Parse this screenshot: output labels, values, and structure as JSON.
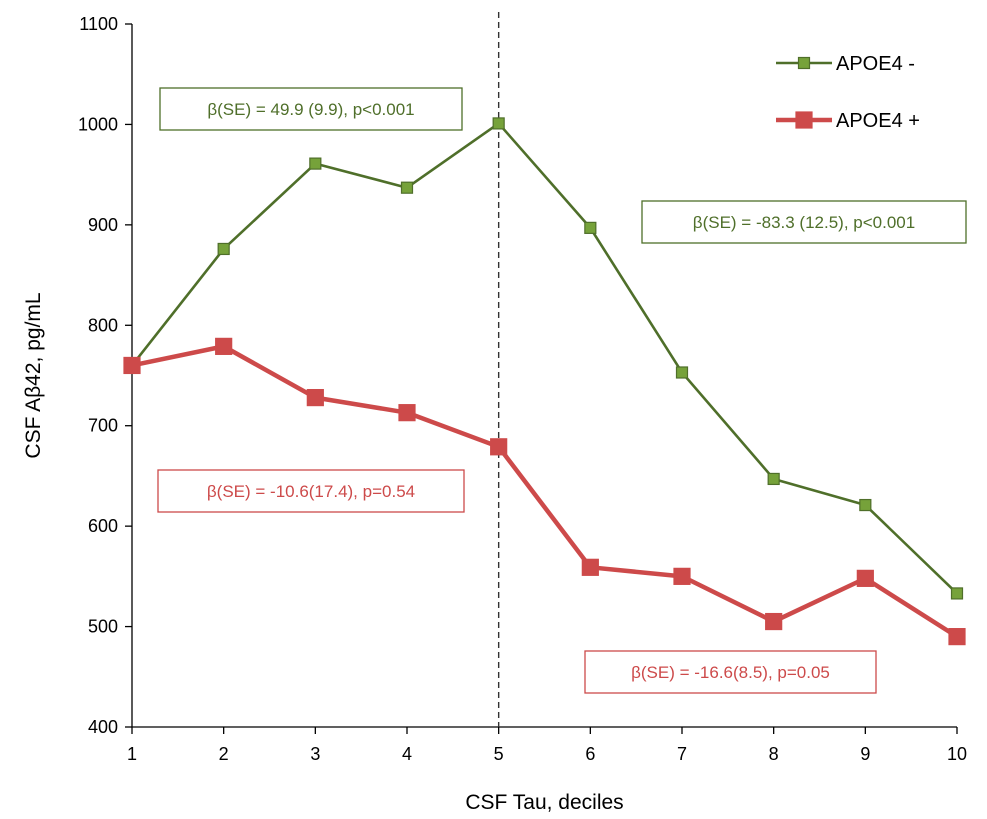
{
  "chart_data": {
    "type": "line",
    "xlabel": "CSF Tau, deciles",
    "ylabel": "CSF Aβ42, pg/mL",
    "x": [
      1,
      2,
      3,
      4,
      5,
      6,
      7,
      8,
      9,
      10
    ],
    "xlim": [
      1,
      10
    ],
    "ylim": [
      400,
      1100
    ],
    "y_ticks": [
      400,
      500,
      600,
      700,
      800,
      900,
      1000,
      1100
    ],
    "grid": false,
    "legend_position": "top-right",
    "reference_line": {
      "x": 5,
      "style": "dashed"
    },
    "series": [
      {
        "name": "APOE4 -",
        "color": "#4f6f2a",
        "marker_color": "#76a23a",
        "marker": "square",
        "values": [
          760,
          876,
          961,
          937,
          1001,
          897,
          753,
          647,
          621,
          533
        ]
      },
      {
        "name": "APOE4 +",
        "color": "#cd4a4a",
        "marker_color": "#cd4a4a",
        "marker": "square",
        "values": [
          760,
          779,
          728,
          713,
          679,
          559,
          550,
          505,
          548,
          490
        ]
      }
    ],
    "annotations": [
      {
        "text": "β(SE) = 49.9 (9.9), p<0.001",
        "series": 0,
        "color": "#4f6f2a"
      },
      {
        "text": "β(SE) = -83.3 (12.5), p<0.001",
        "series": 0,
        "color": "#4f6f2a"
      },
      {
        "text": "β(SE) = -10.6(17.4), p=0.54",
        "series": 1,
        "color": "#cd4a4a"
      },
      {
        "text": "β(SE) = -16.6(8.5), p=0.05",
        "series": 1,
        "color": "#cd4a4a"
      }
    ]
  }
}
